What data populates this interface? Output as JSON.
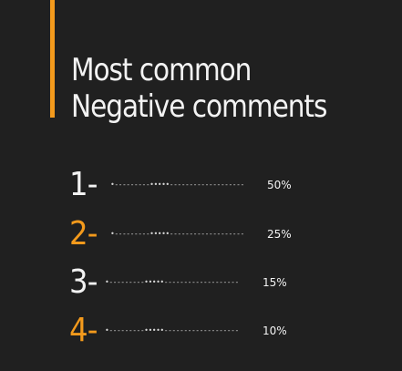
{
  "title": "Most common Negative comments",
  "items": [
    {
      "rank": "1-",
      "comment": "•---------•••••-------------------",
      "percent": "50%",
      "rank_color": "#f3f3f3"
    },
    {
      "rank": "2-",
      "comment": "•---------•••••-------------------",
      "percent": "25%",
      "rank_color": "#f39a1c"
    },
    {
      "rank": "3-",
      "comment": "•---------•••••-------------------",
      "percent": "15%",
      "rank_color": "#f3f3f3"
    },
    {
      "rank": "4-",
      "comment": "•---------•••••-------------------",
      "percent": "10%",
      "rank_color": "#f39a1c"
    }
  ],
  "colors": {
    "background": "#202020",
    "accent": "#f39a1c",
    "text": "#f3f3f3"
  }
}
